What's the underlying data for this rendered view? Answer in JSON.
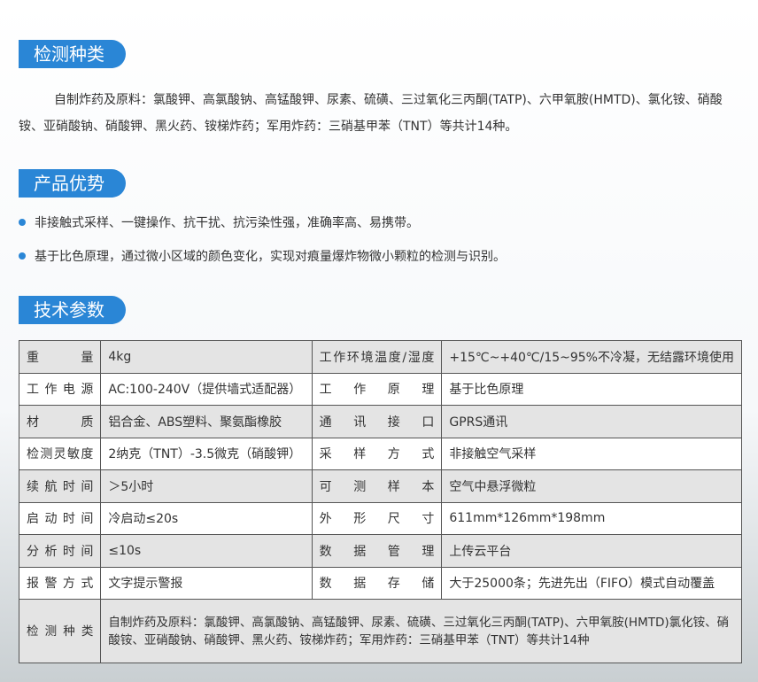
{
  "sections": {
    "detect_title": "检测种类",
    "detect_text": "自制炸药及原料：氯酸钾、高氯酸钠、高锰酸钾、尿素、硫磺、三过氧化三丙酮(TATP)、六甲氧胺(HMTD)、氯化铵、硝酸铵、亚硝酸钠、硝酸钾、黑火药、铵梯炸药；军用炸药：三硝基甲苯（TNT）等共计14种。",
    "advantage_title": "产品优势",
    "advantages": [
      "非接触式采样、一键操作、抗干扰、抗污染性强，准确率高、易携带。",
      "基于比色原理，通过微小区域的颜色变化，实现对痕量爆炸物微小颗粒的检测与识别。"
    ],
    "spec_title": "技术参数"
  },
  "accent": "#2a86d6",
  "specs": [
    [
      "重　量",
      "4kg",
      "工作环境温度/湿度",
      "+15℃~+40℃/15~95%不冷凝，无结露环境使用"
    ],
    [
      "工作电源",
      "AC:100-240V（提供墙式适配器）",
      "工作原理",
      "基于比色原理"
    ],
    [
      "材　质",
      "铝合金、ABS塑料、聚氨酯橡胶",
      "通讯接口",
      "GPRS通讯"
    ],
    [
      "检测灵敏度",
      "2纳克（TNT）-3.5微克（硝酸钾）",
      "采样方式",
      "非接触空气采样"
    ],
    [
      "续航时间",
      "＞5小时",
      "可测样本",
      "空气中悬浮微粒"
    ],
    [
      "启动时间",
      "冷启动≤20s",
      "外形尺寸",
      "611mm*126mm*198mm"
    ],
    [
      "分析时间",
      "≤10s",
      "数据管理",
      "上传云平台"
    ],
    [
      "报警方式",
      "文字提示警报",
      "数据存储",
      "大于25000条；先进先出（FIFO）模式自动覆盖"
    ]
  ],
  "detect_row": {
    "label": "检测种类",
    "value": "自制炸药及原料：氯酸钾、高氯酸钠、高锰酸钾、尿素、硫磺、三过氧化三丙酮(TATP)、六甲氧胺(HMTD)氯化铵、硝酸铵、亚硝酸钠、硝酸钾、黑火药、铵梯炸药；军用炸药：三硝基甲苯（TNT）等共计14种"
  }
}
